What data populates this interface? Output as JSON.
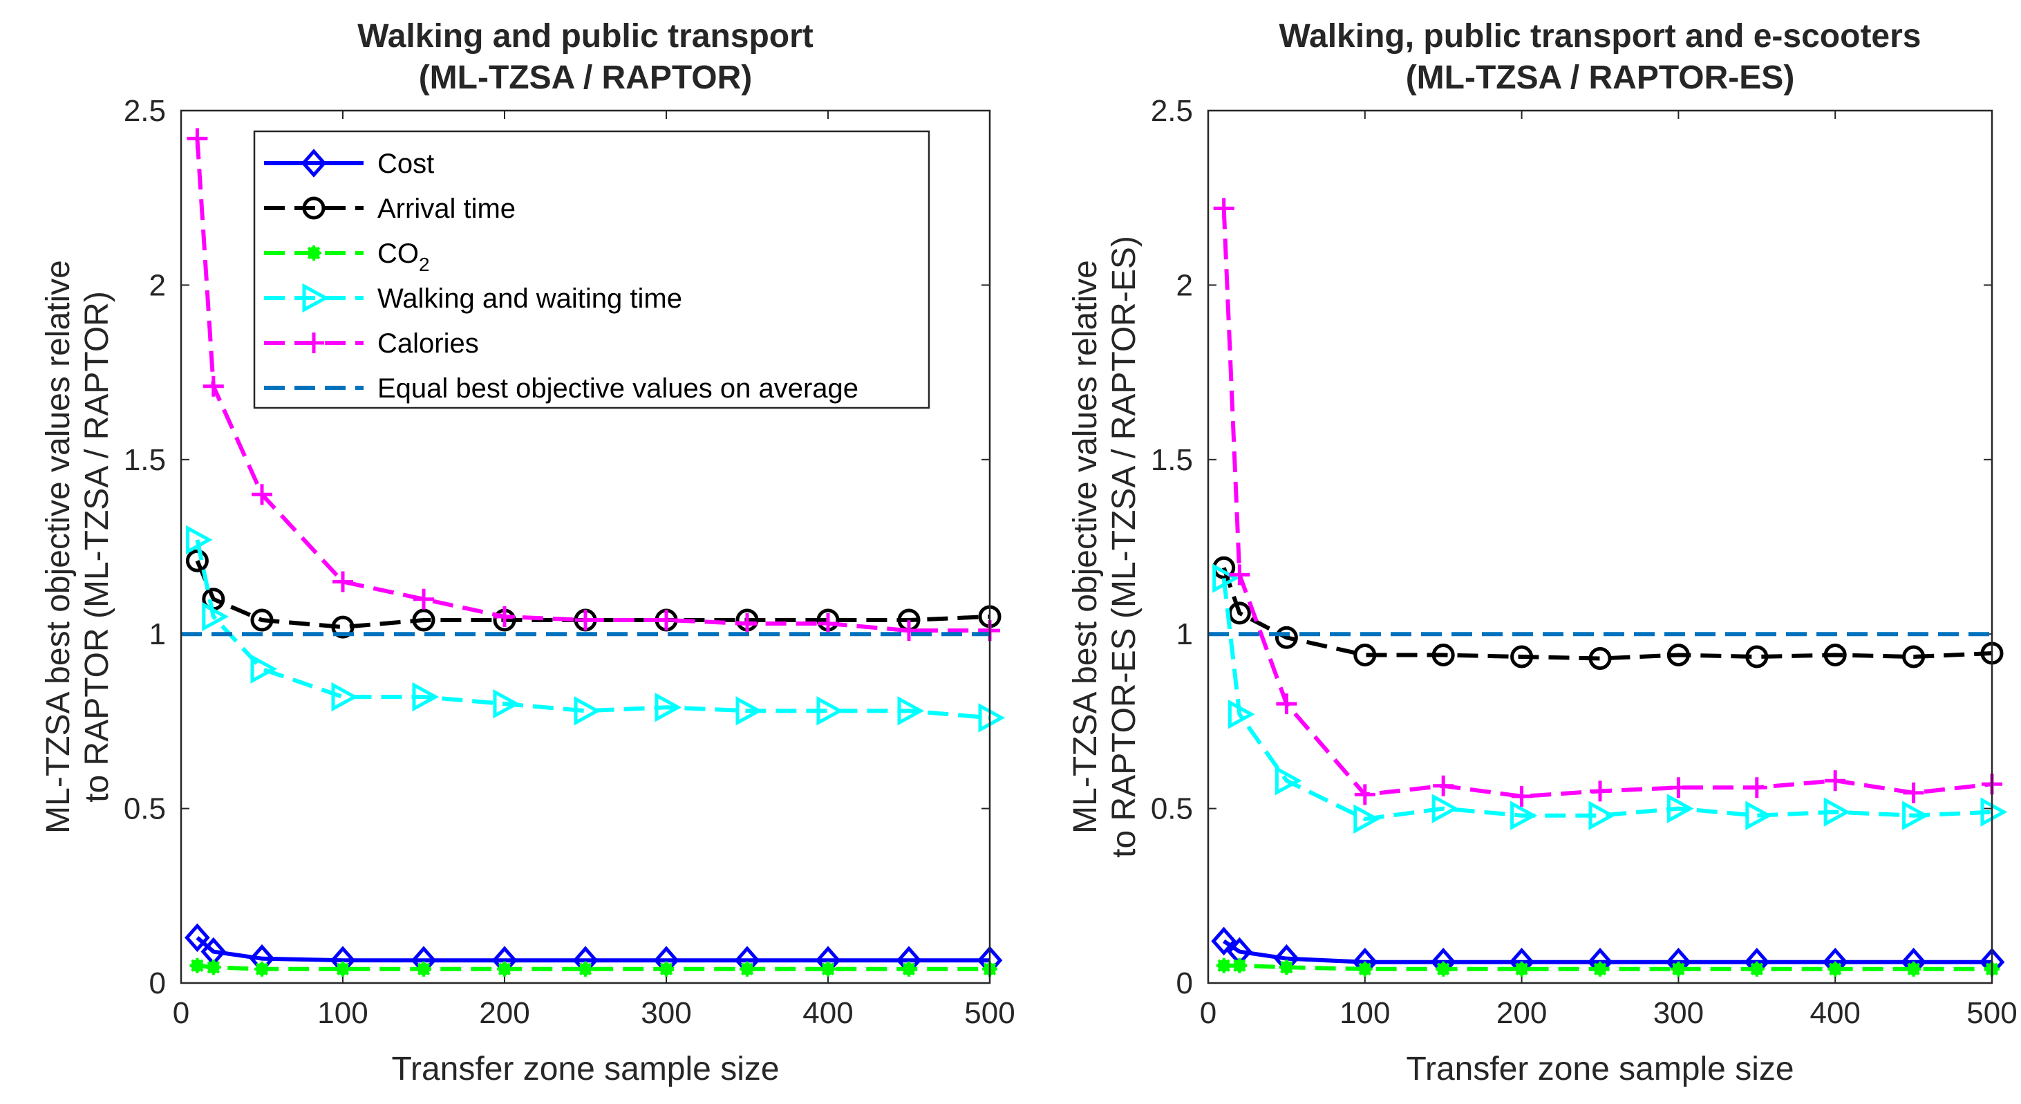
{
  "chart_data": [
    {
      "type": "line",
      "title": [
        "Walking and public transport",
        "(ML-TZSA / RAPTOR)"
      ],
      "xlabel": "Transfer zone sample size",
      "ylabel": [
        "ML-TZSA best objective values relative",
        "to RAPTOR (ML-TZSA / RAPTOR)"
      ],
      "xlim": [
        0,
        500
      ],
      "ylim": [
        0,
        2.5
      ],
      "xticks": [
        "0",
        "100",
        "200",
        "300",
        "400",
        "500"
      ],
      "yticks": [
        "0",
        "0.5",
        "1",
        "1.5",
        "2",
        "2.5"
      ],
      "x": [
        10,
        20,
        50,
        100,
        150,
        200,
        250,
        300,
        350,
        400,
        450,
        500
      ],
      "legend_position": "top-right",
      "series": [
        {
          "name": "Cost",
          "color": "#0000ff",
          "marker": "diamond",
          "dash": "solid",
          "values": [
            0.13,
            0.09,
            0.07,
            0.065,
            0.065,
            0.065,
            0.065,
            0.065,
            0.065,
            0.065,
            0.065,
            0.065
          ]
        },
        {
          "name": "Arrival time",
          "color": "#000000",
          "marker": "circle",
          "dash": "dashed",
          "values": [
            1.21,
            1.1,
            1.04,
            1.02,
            1.04,
            1.04,
            1.04,
            1.04,
            1.04,
            1.04,
            1.04,
            1.05
          ]
        },
        {
          "name": "CO",
          "name_sub": "2",
          "color": "#00ff00",
          "marker": "star",
          "dash": "dashed",
          "values": [
            0.05,
            0.045,
            0.04,
            0.04,
            0.04,
            0.04,
            0.04,
            0.04,
            0.04,
            0.04,
            0.04,
            0.04
          ]
        },
        {
          "name": "Walking and waiting time",
          "color": "#00ffff",
          "marker": "triangle-right",
          "dash": "dashed",
          "values": [
            1.27,
            1.05,
            0.9,
            0.82,
            0.82,
            0.8,
            0.78,
            0.79,
            0.78,
            0.78,
            0.78,
            0.76
          ]
        },
        {
          "name": "Calories",
          "color": "#ff00ff",
          "marker": "plus",
          "dash": "dashed",
          "values": [
            2.42,
            1.71,
            1.4,
            1.15,
            1.1,
            1.05,
            1.04,
            1.04,
            1.03,
            1.03,
            1.01,
            1.01
          ]
        },
        {
          "name": "Equal best objective values on average",
          "color": "#0072bd",
          "marker": "none",
          "dash": "dashed",
          "reference": 1
        }
      ]
    },
    {
      "type": "line",
      "title": [
        "Walking, public transport and e-scooters",
        "(ML-TZSA / RAPTOR-ES)"
      ],
      "xlabel": "Transfer zone sample size",
      "ylabel": [
        "ML-TZSA best objective values relative",
        "to RAPTOR-ES (ML-TZSA / RAPTOR-ES)"
      ],
      "xlim": [
        0,
        500
      ],
      "ylim": [
        0,
        2.5
      ],
      "xticks": [
        "0",
        "100",
        "200",
        "300",
        "400",
        "500"
      ],
      "yticks": [
        "0",
        "0.5",
        "1",
        "1.5",
        "2",
        "2.5"
      ],
      "x": [
        10,
        20,
        50,
        100,
        150,
        200,
        250,
        300,
        350,
        400,
        450,
        500
      ],
      "series": [
        {
          "name": "Cost",
          "color": "#0000ff",
          "marker": "diamond",
          "dash": "solid",
          "values": [
            0.12,
            0.09,
            0.07,
            0.06,
            0.06,
            0.06,
            0.06,
            0.06,
            0.06,
            0.06,
            0.06,
            0.06
          ]
        },
        {
          "name": "Arrival time",
          "color": "#000000",
          "marker": "circle",
          "dash": "dashed",
          "values": [
            1.19,
            1.06,
            0.99,
            0.94,
            0.94,
            0.935,
            0.93,
            0.94,
            0.935,
            0.94,
            0.935,
            0.945
          ]
        },
        {
          "name": "CO2",
          "color": "#00ff00",
          "marker": "star",
          "dash": "dashed",
          "values": [
            0.05,
            0.05,
            0.045,
            0.04,
            0.04,
            0.04,
            0.04,
            0.04,
            0.04,
            0.04,
            0.04,
            0.04
          ]
        },
        {
          "name": "Walking and waiting time",
          "color": "#00ffff",
          "marker": "triangle-right",
          "dash": "dashed",
          "values": [
            1.16,
            0.77,
            0.58,
            0.47,
            0.5,
            0.48,
            0.48,
            0.5,
            0.48,
            0.49,
            0.48,
            0.49
          ]
        },
        {
          "name": "Calories",
          "color": "#ff00ff",
          "marker": "plus",
          "dash": "dashed",
          "values": [
            2.22,
            1.17,
            0.8,
            0.54,
            0.565,
            0.535,
            0.55,
            0.56,
            0.56,
            0.58,
            0.545,
            0.57
          ]
        },
        {
          "name": "Equal best objective values on average",
          "color": "#0072bd",
          "marker": "none",
          "dash": "dashed",
          "reference": 1
        }
      ]
    }
  ]
}
